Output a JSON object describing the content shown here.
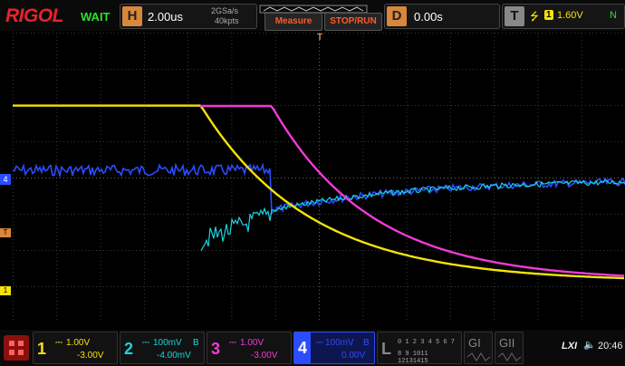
{
  "brand": "RIGOL",
  "status": "WAIT",
  "timebase": {
    "key": "H",
    "value": "2.00us",
    "rate": "2GSa/s",
    "points": "40kpts"
  },
  "buttons": {
    "measure": "Measure",
    "stop_run": "STOP/RUN"
  },
  "delay": {
    "key": "D",
    "value": "0.00s"
  },
  "trigger": {
    "key": "T",
    "source": "1",
    "level": "1.60V",
    "mode": "N"
  },
  "markers": {
    "trigger_pos": "T",
    "ch_offset": "T",
    "ch1": "1",
    "ch4": "4"
  },
  "channels": [
    {
      "num": "1",
      "scale": "1.00V",
      "offset": "-3.00V",
      "flag": "",
      "color": "#f5e20a"
    },
    {
      "num": "2",
      "scale": "100mV",
      "offset": "-4.00mV",
      "flag": "B",
      "color": "#19d4e0"
    },
    {
      "num": "3",
      "scale": "1.00V",
      "offset": "-3.00V",
      "flag": "",
      "color": "#f03ad6"
    },
    {
      "num": "4",
      "scale": "100mV",
      "offset": "0.00V",
      "flag": "B",
      "color": "#2b4dff"
    }
  ],
  "logic": {
    "key": "L",
    "row1": "0 1 2 3 4 5 6 7",
    "row2": "8 9 1011 12131415"
  },
  "generators": {
    "g1": "GI",
    "g2": "GII"
  },
  "sys": {
    "lxi": "LXI",
    "sound": "🔈",
    "time": "20:46"
  },
  "colors": {
    "ch1": "#f5e20a",
    "ch2": "#19d4e0",
    "ch3": "#f03ad6",
    "ch4": "#2b4dff",
    "trigger": "#d9873b"
  }
}
